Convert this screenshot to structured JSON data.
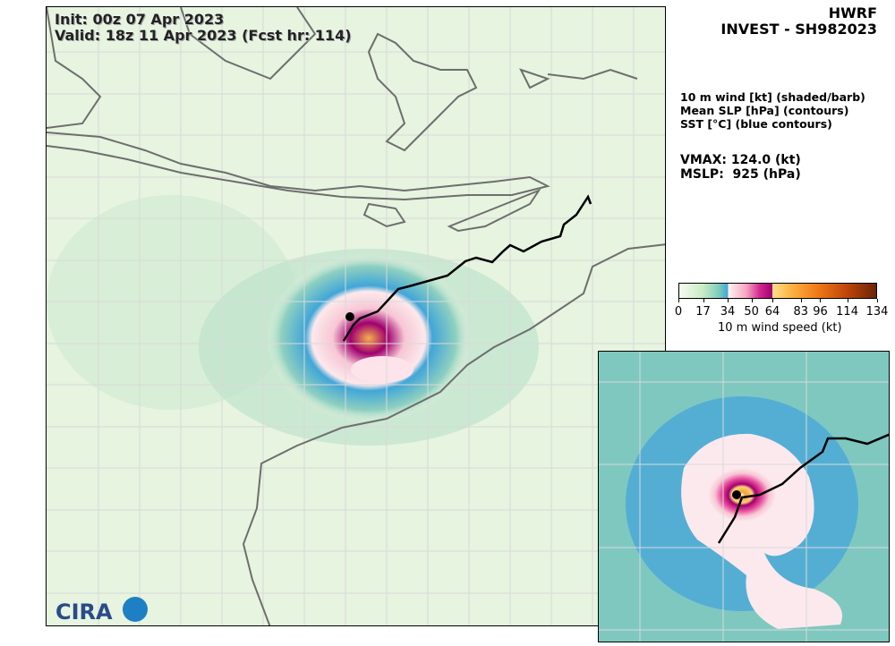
{
  "header": {
    "init": "Init:   00z 07 Apr 2023",
    "valid": "Valid: 18z 11 Apr 2023 (Fcst hr: 114)"
  },
  "title": {
    "model": "HWRF",
    "storm": "INVEST - SH982023"
  },
  "fields": [
    "10 m wind [kt] (shaded/barb)",
    "Mean SLP [hPa] (contours)",
    "SST [°C] (blue contours)"
  ],
  "stats": {
    "vmax": "VMAX: 124.0 (kt)",
    "mslp": "MSLP:  925 (hPa)"
  },
  "colorbar": {
    "label": "10 m wind speed (kt)",
    "ticks": [
      "0",
      "17",
      "34",
      "50",
      "64",
      "83",
      "96",
      "114",
      "134"
    ],
    "colors": {
      "low": "#f7fcf0",
      "34kt": "#41a6d8",
      "50kt": "#d0278e",
      "64kt": "#ffe08a",
      "max": "#6b2506"
    }
  },
  "logos": {
    "cira": "CIRA"
  },
  "colors": {
    "land_outline": "#6e6e6e",
    "track": "#000000",
    "grid": "#d9d9d9"
  }
}
